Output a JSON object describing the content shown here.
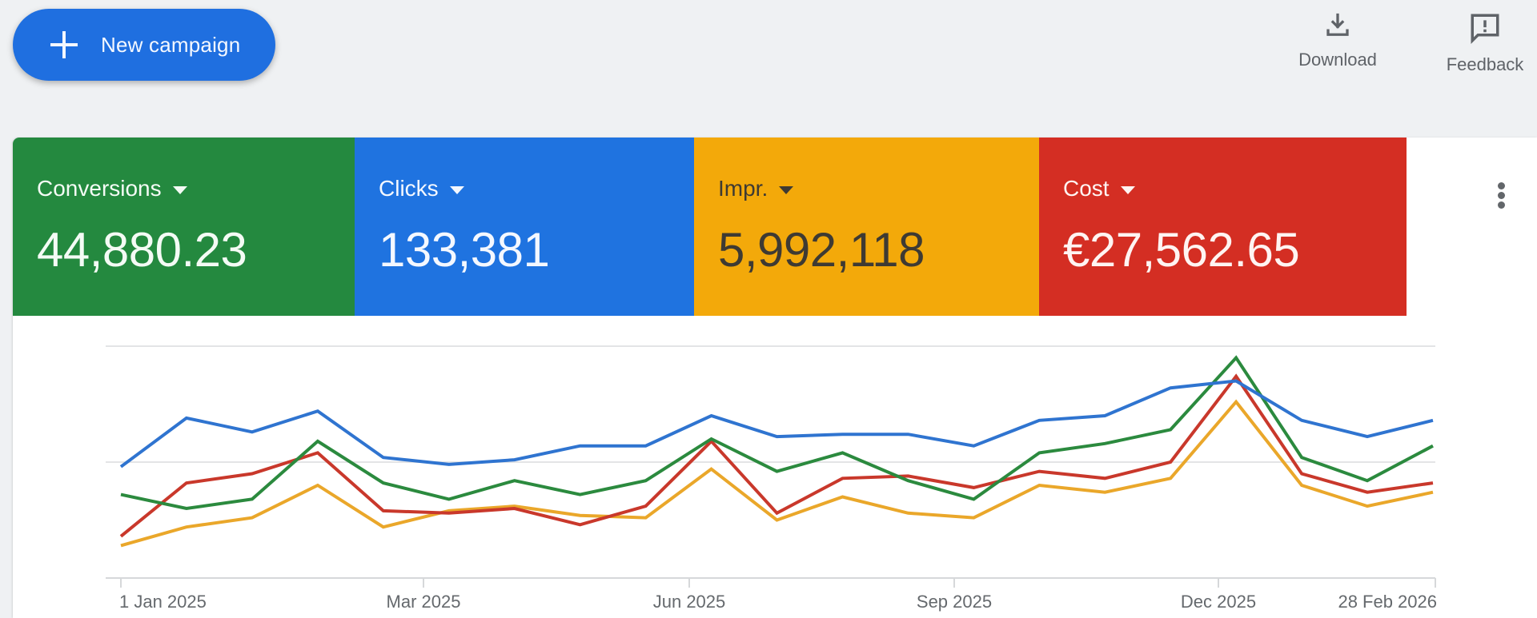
{
  "toolbar": {
    "new_campaign_label": "New campaign",
    "download_label": "Download",
    "feedback_label": "Feedback",
    "icons": {
      "new_campaign": "plus-icon",
      "download": "download-icon",
      "feedback": "feedback-icon",
      "more": "more-vert-icon"
    }
  },
  "metrics": [
    {
      "label": "Conversions",
      "value": "44,880.23",
      "color": "#24893f"
    },
    {
      "label": "Clicks",
      "value": "133,381",
      "color": "#1f73e0"
    },
    {
      "label": "Impr.",
      "value": "5,992,118",
      "color": "#f3a90a"
    },
    {
      "label": "Cost",
      "value": "€27,562.65",
      "color": "#d42e23"
    }
  ],
  "chart_data": {
    "type": "line",
    "title": "",
    "xlabel": "",
    "ylabel": "",
    "grid": true,
    "legend": "metric scorecards above chart (Conversions, Clicks, Impr., Cost)",
    "x_tick_labels": [
      "1 Jan 2025",
      "Mar 2025",
      "Jun 2025",
      "Sep 2025",
      "Dec 2025",
      "28 Feb 2026"
    ],
    "x": [
      0,
      1,
      2,
      3,
      4,
      5,
      6,
      7,
      8,
      9,
      10,
      11,
      12,
      13,
      14,
      15,
      16,
      17,
      18,
      19,
      20
    ],
    "y_scale_note": "relative (0 = baseline, 100 = top gridline); each series normalized independently",
    "ylim": [
      0,
      100
    ],
    "series": [
      {
        "name": "Clicks",
        "color": "#2f74d0",
        "values": [
          48,
          69,
          63,
          72,
          52,
          49,
          51,
          57,
          57,
          70,
          61,
          62,
          62,
          57,
          68,
          70,
          82,
          85,
          68,
          61,
          68
        ]
      },
      {
        "name": "Conversions",
        "color": "#2b8a3e",
        "values": [
          36,
          30,
          34,
          59,
          41,
          34,
          42,
          36,
          42,
          60,
          46,
          54,
          42,
          34,
          54,
          58,
          64,
          95,
          52,
          42,
          57
        ]
      },
      {
        "name": "Cost",
        "color": "#c9382b",
        "values": [
          18,
          41,
          45,
          54,
          29,
          28,
          30,
          23,
          31,
          59,
          28,
          43,
          44,
          39,
          46,
          43,
          50,
          87,
          45,
          37,
          41
        ]
      },
      {
        "name": "Impr.",
        "color": "#eaa72a",
        "values": [
          14,
          22,
          26,
          40,
          22,
          29,
          31,
          27,
          26,
          47,
          25,
          35,
          28,
          26,
          40,
          37,
          43,
          76,
          40,
          31,
          37
        ]
      }
    ]
  }
}
